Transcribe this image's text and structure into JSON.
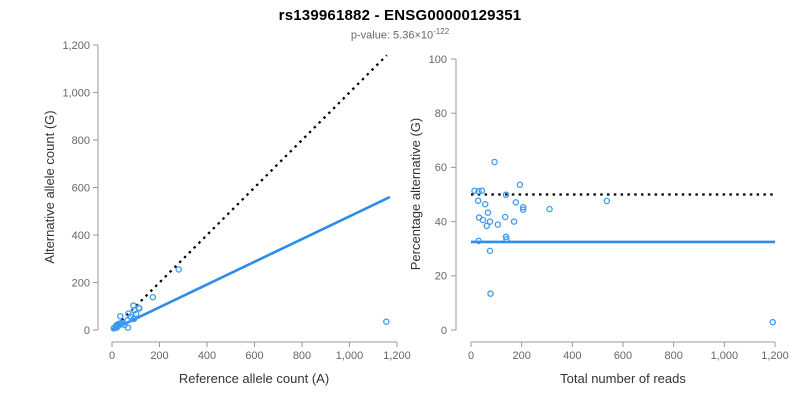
{
  "header": {
    "title": "rs139961882 - ENSG00000129351",
    "subtitle_prefix": "p-value: 5.36×10",
    "subtitle_exponent": "-122"
  },
  "colors": {
    "point_blue": "#3d9af0",
    "line_blue": "#2b8cee",
    "dotted_black": "#000000",
    "axis_line": "#999999",
    "tick_label": "#666666",
    "axis_title": "#333333"
  },
  "chart_data": [
    {
      "type": "scatter",
      "name": "allele-counts-scatter",
      "xlabel": "Reference allele count (A)",
      "ylabel": "Alternative allele count (G)",
      "xlim": [
        0,
        1200
      ],
      "ylim": [
        0,
        1200
      ],
      "xticks": [
        0,
        200,
        400,
        600,
        800,
        1000,
        1200
      ],
      "yticks": [
        0,
        200,
        400,
        600,
        800,
        1000,
        1200
      ],
      "grid": false,
      "points": [
        [
          35,
          58
        ],
        [
          7,
          7
        ],
        [
          15,
          15
        ],
        [
          21,
          22
        ],
        [
          90,
          103
        ],
        [
          69,
          69
        ],
        [
          15,
          13
        ],
        [
          30,
          26
        ],
        [
          94,
          83
        ],
        [
          113,
          93
        ],
        [
          115,
          91
        ],
        [
          172,
          138
        ],
        [
          19,
          13
        ],
        [
          28,
          19
        ],
        [
          38,
          29
        ],
        [
          45,
          30
        ],
        [
          38,
          24
        ],
        [
          65,
          41
        ],
        [
          79,
          56
        ],
        [
          102,
          68
        ],
        [
          91,
          47
        ],
        [
          93,
          47
        ],
        [
          20,
          10
        ],
        [
          53,
          22
        ],
        [
          67,
          10
        ],
        [
          281,
          255
        ],
        [
          1155,
          35
        ]
      ],
      "lines": [
        {
          "name": "identity-line",
          "style": "dotted",
          "color": "#000000",
          "x1": 0,
          "y1": 0,
          "x2": 1157,
          "y2": 1157
        },
        {
          "name": "regression-line",
          "style": "solid",
          "color": "#2b8cee",
          "x1": 0,
          "y1": 0,
          "x2": 1170,
          "y2": 560
        }
      ]
    },
    {
      "type": "scatter",
      "name": "percentage-vs-depth-scatter",
      "xlabel": "Total number of reads",
      "ylabel": "Percentage alternative (G)",
      "xlim": [
        0,
        1200
      ],
      "ylim": [
        0,
        100
      ],
      "xticks": [
        0,
        200,
        400,
        600,
        800,
        1000,
        1200
      ],
      "yticks": [
        0,
        20,
        40,
        60,
        80,
        100
      ],
      "grid": false,
      "points": [
        [
          93,
          62
        ],
        [
          14,
          51.4
        ],
        [
          30,
          51.2
        ],
        [
          43,
          51.4
        ],
        [
          193,
          53.6
        ],
        [
          138,
          49.9
        ],
        [
          28,
          47.7
        ],
        [
          56,
          46.4
        ],
        [
          177,
          47.1
        ],
        [
          206,
          45.3
        ],
        [
          206,
          44.4
        ],
        [
          310,
          44.6
        ],
        [
          32,
          41.5
        ],
        [
          47,
          40.6
        ],
        [
          67,
          43.3
        ],
        [
          75,
          40
        ],
        [
          62,
          38.4
        ],
        [
          106,
          38.9
        ],
        [
          135,
          41.7
        ],
        [
          170,
          40
        ],
        [
          138,
          34.4
        ],
        [
          140,
          33.5
        ],
        [
          30,
          32.9
        ],
        [
          75,
          29.2
        ],
        [
          77,
          13.4
        ],
        [
          536,
          47.6
        ],
        [
          1191,
          2.9
        ]
      ],
      "lines": [
        {
          "name": "expected-fraction-line",
          "style": "dotted",
          "color": "#000000",
          "x1": 0,
          "y1": 50,
          "x2": 1200,
          "y2": 50
        },
        {
          "name": "observed-fraction-line",
          "style": "solid",
          "color": "#2b8cee",
          "x1": 0,
          "y1": 32.5,
          "x2": 1200,
          "y2": 32.5
        }
      ]
    }
  ]
}
